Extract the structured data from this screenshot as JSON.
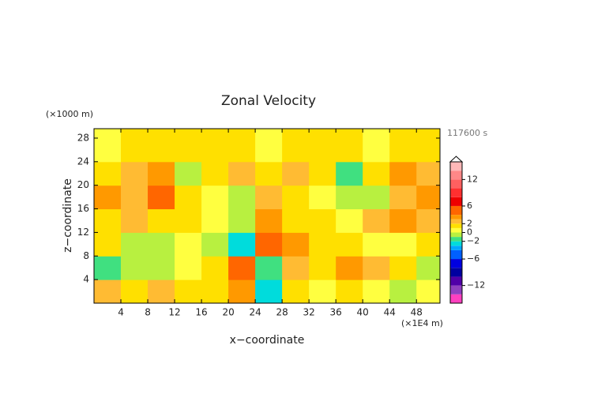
{
  "chart_data": {
    "type": "contour",
    "title": "Zonal Velocity",
    "y_unit": "(×1000 m)",
    "time_label": "117600 s",
    "xlabel": "x−coordinate",
    "ylabel": "z−coordinate",
    "x_unit": "(×1E4 m)",
    "xlim": [
      0,
      51.5
    ],
    "ylim": [
      0,
      29.6
    ],
    "xticks": [
      4,
      8,
      12,
      16,
      20,
      24,
      28,
      32,
      36,
      40,
      44,
      48
    ],
    "yticks": [
      4,
      8,
      12,
      16,
      20,
      24,
      28
    ],
    "x": [
      2,
      6,
      10,
      14,
      18,
      22,
      26,
      30,
      34,
      38,
      42,
      46,
      50
    ],
    "z": [
      2,
      6,
      10,
      14,
      18,
      22,
      26
    ],
    "values": [
      [
        2,
        1,
        2,
        1,
        1,
        3,
        -3,
        1,
        0,
        1,
        0,
        -1,
        0
      ],
      [
        -2,
        -1,
        -1,
        0,
        1,
        4,
        -2,
        2,
        1,
        3,
        2,
        1,
        -1
      ],
      [
        1,
        -1,
        -1,
        0,
        -1,
        -3,
        4,
        3,
        1,
        1,
        0,
        0,
        1
      ],
      [
        1,
        2,
        1,
        1,
        0,
        -1,
        3,
        1,
        1,
        0,
        2,
        3,
        2
      ],
      [
        3,
        2,
        4,
        1,
        0,
        -1,
        2,
        1,
        0,
        -1,
        -1,
        2,
        3
      ],
      [
        1,
        2,
        3,
        -1,
        1,
        2,
        1,
        2,
        1,
        -2,
        1,
        3,
        2
      ],
      [
        0,
        1,
        1,
        1,
        1,
        1,
        0,
        1,
        1,
        1,
        0,
        1,
        1
      ]
    ],
    "clim": [
      -16,
      16
    ],
    "levels": [
      -16,
      -14,
      -12,
      -10,
      -8,
      -6,
      -4,
      -3,
      -2,
      -1,
      0,
      1,
      2,
      3,
      4,
      6,
      8,
      10,
      12,
      14,
      16
    ],
    "colors": [
      "#ff40c0",
      "#9040c0",
      "#5000a8",
      "#0000a0",
      "#0000e0",
      "#0060ff",
      "#00a8ff",
      "#00dcdc",
      "#40e080",
      "#b8f040",
      "#ffff40",
      "#ffe000",
      "#ffbb33",
      "#ff9900",
      "#ff6600",
      "#ee0000",
      "#ff3030",
      "#ff6060",
      "#ff8888",
      "#ffb8b8"
    ],
    "cticks": [
      {
        "value": -12,
        "label": "−12"
      },
      {
        "value": -6,
        "label": "−6"
      },
      {
        "value": -2,
        "label": "−2"
      },
      0,
      2,
      6,
      12
    ]
  }
}
